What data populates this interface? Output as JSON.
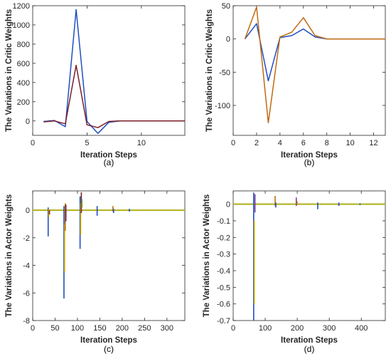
{
  "colors": {
    "blue": "#1f4fc1",
    "red": "#7a1f2a",
    "orange": "#c06a10",
    "gold": "#d9b400",
    "green": "#6aa83a",
    "purple": "#7a3fa0",
    "axis": "#262626"
  },
  "chart_data": [
    {
      "type": "line",
      "caption": "(a)",
      "xlabel": "Iteration Steps",
      "ylabel": "The Variations in Critic Weights",
      "xlim": [
        0,
        14
      ],
      "ylim": [
        -150,
        1200
      ],
      "xticks": [
        0,
        5,
        10
      ],
      "yticks": [
        0,
        200,
        400,
        600,
        800,
        1000,
        1200
      ],
      "x": [
        1,
        2,
        3,
        4,
        5,
        6,
        7,
        8,
        9,
        10,
        11,
        12,
        13,
        14
      ],
      "series": [
        {
          "color": "#1f4fc1",
          "values": [
            -5,
            5,
            -60,
            1160,
            -5,
            -130,
            -15,
            0,
            0,
            0,
            0,
            0,
            0,
            0
          ]
        },
        {
          "color": "#7a1f2a",
          "values": [
            -10,
            0,
            -30,
            580,
            -40,
            -70,
            -5,
            0,
            0,
            0,
            0,
            0,
            0,
            0
          ]
        }
      ]
    },
    {
      "type": "line",
      "caption": "(b)",
      "xlabel": "Iteration Steps",
      "ylabel": "The Variations in Critic Weights",
      "xlim": [
        0,
        13
      ],
      "ylim": [
        -145,
        50
      ],
      "xticks": [
        0,
        2,
        4,
        6,
        8,
        10,
        12
      ],
      "yticks": [
        -100,
        -50,
        0,
        50
      ],
      "x": [
        1,
        2,
        3,
        4,
        5,
        6,
        7,
        8,
        9,
        10,
        11,
        12,
        13
      ],
      "series": [
        {
          "color": "#1f4fc1",
          "values": [
            0,
            23,
            -63,
            2,
            5,
            15,
            3,
            0,
            0,
            0,
            0,
            0,
            0
          ]
        },
        {
          "color": "#c06a10",
          "values": [
            0,
            48,
            -126,
            3,
            10,
            32,
            5,
            0,
            0,
            0,
            0,
            0,
            0
          ]
        }
      ]
    },
    {
      "type": "line",
      "caption": "(c)",
      "xlabel": "Iteration Steps",
      "ylabel": "The Variations in Actor Weights",
      "xlim": [
        0,
        340
      ],
      "ylim": [
        -8,
        1.4
      ],
      "xticks": [
        0,
        50,
        100,
        150,
        200,
        250,
        300
      ],
      "yticks": [
        -8,
        -6,
        -4,
        -2,
        0
      ],
      "spikes": [
        {
          "x": 36,
          "segments": [
            {
              "color": "#1f4fc1",
              "from": -1.9,
              "to": 0.2
            },
            {
              "color": "#d9b400",
              "from": -0.5,
              "to": 0.1
            },
            {
              "color": "#7a1f2a",
              "from": -0.3,
              "to": 0.0
            }
          ]
        },
        {
          "x": 72,
          "segments": [
            {
              "color": "#1f4fc1",
              "from": -6.4,
              "to": 0.3
            },
            {
              "color": "#d9b400",
              "from": -4.5,
              "to": -1.0
            },
            {
              "color": "#c06a10",
              "from": -1.5,
              "to": 0.5
            },
            {
              "color": "#7a1f2a",
              "from": -0.8,
              "to": 0.4
            }
          ]
        },
        {
          "x": 108,
          "segments": [
            {
              "color": "#1f4fc1",
              "from": -2.8,
              "to": 1.0
            },
            {
              "color": "#d9b400",
              "from": -1.8,
              "to": 0.5
            },
            {
              "color": "#7a1f2a",
              "from": -0.2,
              "to": 1.3
            },
            {
              "color": "#6aa83a",
              "from": 0.2,
              "to": 0.8
            }
          ]
        },
        {
          "x": 144,
          "segments": [
            {
              "color": "#1f4fc1",
              "from": -0.4,
              "to": 0.3
            }
          ]
        },
        {
          "x": 180,
          "segments": [
            {
              "color": "#c06a10",
              "from": -0.1,
              "to": 0.3
            },
            {
              "color": "#1f4fc1",
              "from": -0.2,
              "to": 0.1
            }
          ]
        },
        {
          "x": 216,
          "segments": [
            {
              "color": "#1f4fc1",
              "from": -0.1,
              "to": 0.1
            }
          ]
        }
      ]
    },
    {
      "type": "line",
      "caption": "(d)",
      "xlabel": "Iteration Steps",
      "ylabel": "The Variations in Actor Weights",
      "xlim": [
        0,
        475
      ],
      "ylim": [
        -0.7,
        0.08
      ],
      "xticks": [
        0,
        100,
        200,
        300,
        400
      ],
      "yticks": [
        -0.7,
        -0.6,
        -0.5,
        -0.4,
        -0.3,
        -0.2,
        -0.1,
        0
      ],
      "spikes": [
        {
          "x": 66,
          "segments": [
            {
              "color": "#1f4fc1",
              "from": -0.7,
              "to": 0.07
            },
            {
              "color": "#d9b400",
              "from": -0.6,
              "to": -0.1
            },
            {
              "color": "#7a3fa0",
              "from": -0.05,
              "to": 0.06
            }
          ]
        },
        {
          "x": 132,
          "segments": [
            {
              "color": "#c06a10",
              "from": -0.01,
              "to": 0.05
            },
            {
              "color": "#1f4fc1",
              "from": -0.02,
              "to": 0.01
            }
          ]
        },
        {
          "x": 198,
          "segments": [
            {
              "color": "#7a3fa0",
              "from": -0.01,
              "to": 0.04
            },
            {
              "color": "#c06a10",
              "from": 0.0,
              "to": 0.02
            }
          ]
        },
        {
          "x": 264,
          "segments": [
            {
              "color": "#1f4fc1",
              "from": -0.03,
              "to": 0.01
            }
          ]
        },
        {
          "x": 330,
          "segments": [
            {
              "color": "#1f4fc1",
              "from": -0.01,
              "to": 0.01
            }
          ]
        },
        {
          "x": 396,
          "segments": [
            {
              "color": "#1f4fc1",
              "from": -0.005,
              "to": 0.005
            }
          ]
        }
      ]
    }
  ]
}
